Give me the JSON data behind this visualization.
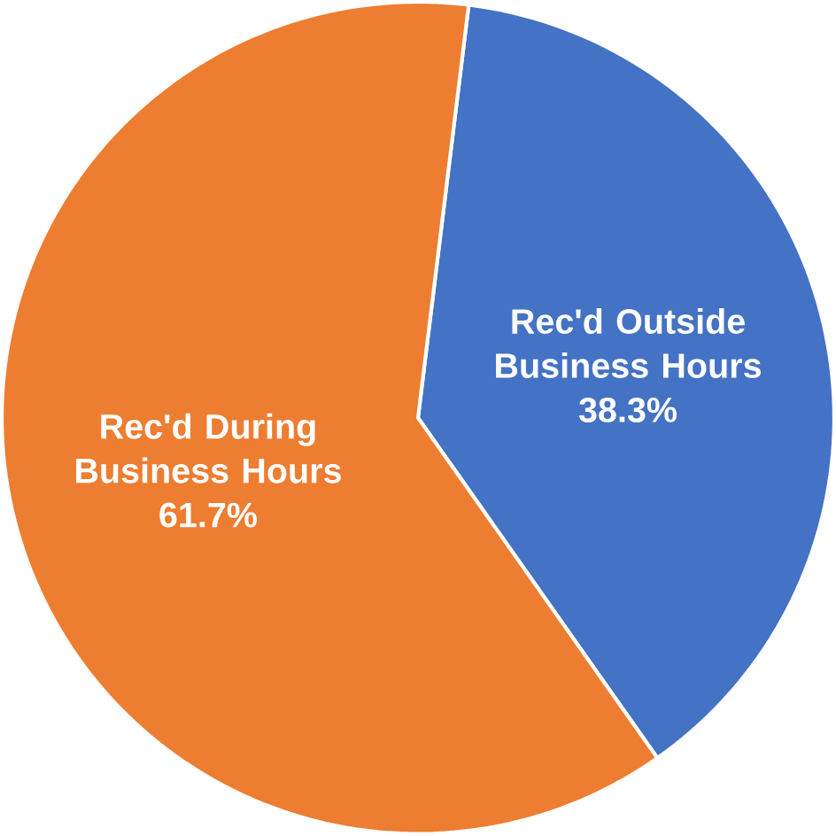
{
  "chart_data": {
    "type": "pie",
    "categories": [
      "Rec'd Outside Business Hours",
      "Rec'd During Business Hours"
    ],
    "values": [
      38.3,
      61.7
    ],
    "colors": [
      "#4472c4",
      "#ed7d31"
    ],
    "value_labels": [
      "38.3%",
      "61.7%"
    ]
  }
}
